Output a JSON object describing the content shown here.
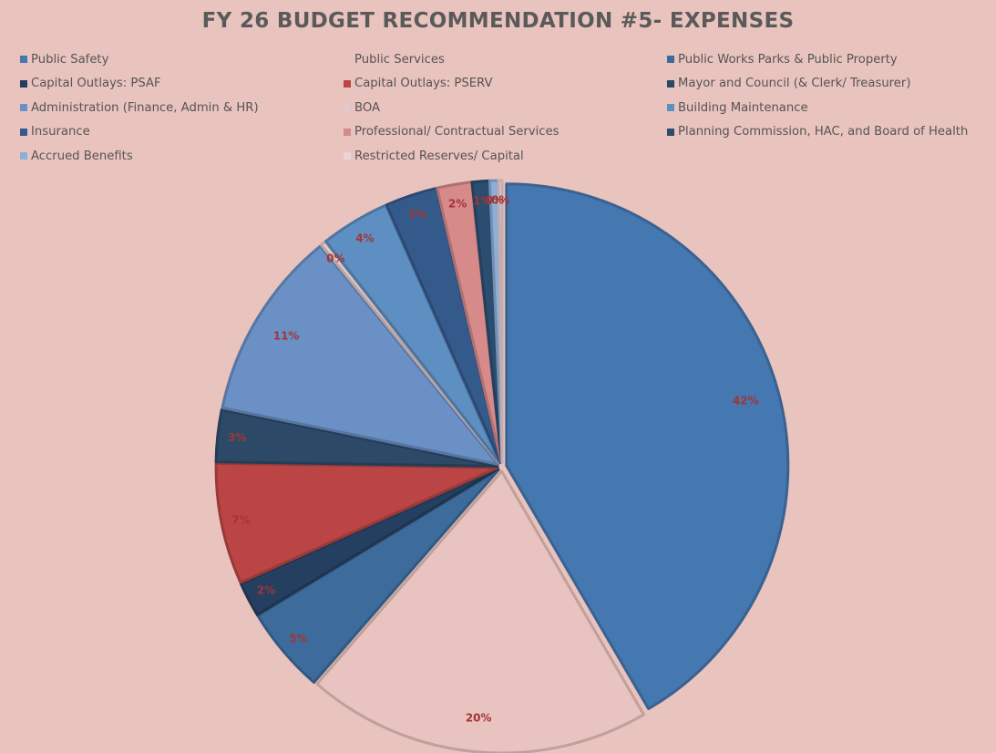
{
  "chart_data": {
    "type": "pie",
    "title": "FY 26 BUDGET RECOMMENDATION #5- EXPENSES",
    "legend_position": "top",
    "slices": [
      {
        "name": "Public Safety",
        "value": 42,
        "label": "42%",
        "color": "#4577b1"
      },
      {
        "name": "Public Services",
        "value": 20,
        "label": "20%",
        "color": "#e9c3bf"
      },
      {
        "name": "Public Works Parks & Public Property",
        "value": 5,
        "label": "5%",
        "color": "#3d6c9c"
      },
      {
        "name": "Capital Outlays: PSAF",
        "value": 2,
        "label": "2%",
        "color": "#253f60"
      },
      {
        "name": "Capital Outlays: PSERV",
        "value": 7,
        "label": "7%",
        "color": "#bb4545"
      },
      {
        "name": "Mayor and Council (& Clerk/ Treasurer)",
        "value": 3,
        "label": "3%",
        "color": "#2c4a68"
      },
      {
        "name": "Administration (Finance, Admin & HR)",
        "value": 11,
        "label": "11%",
        "color": "#6a90c5"
      },
      {
        "name": "BOA",
        "value": 0.3,
        "label": "0%",
        "color": "#e3c9cb"
      },
      {
        "name": "Building Maintenance",
        "value": 4,
        "label": "4%",
        "color": "#5e8fc2"
      },
      {
        "name": "Insurance",
        "value": 3,
        "label": "3%",
        "color": "#345a8c"
      },
      {
        "name": "Professional/ Contractual Services",
        "value": 2,
        "label": "2%",
        "color": "#d68a8a"
      },
      {
        "name": "Planning Commission, HAC, and Board of Health",
        "value": 1,
        "label": "1%",
        "color": "#2b4d70"
      },
      {
        "name": "Accrued Benefits",
        "value": 0.5,
        "label": "0%",
        "color": "#8caed8"
      },
      {
        "name": "Restricted Reserves/ Capital",
        "value": 0.2,
        "label": "0%",
        "color": "#ecd3d6"
      }
    ]
  }
}
